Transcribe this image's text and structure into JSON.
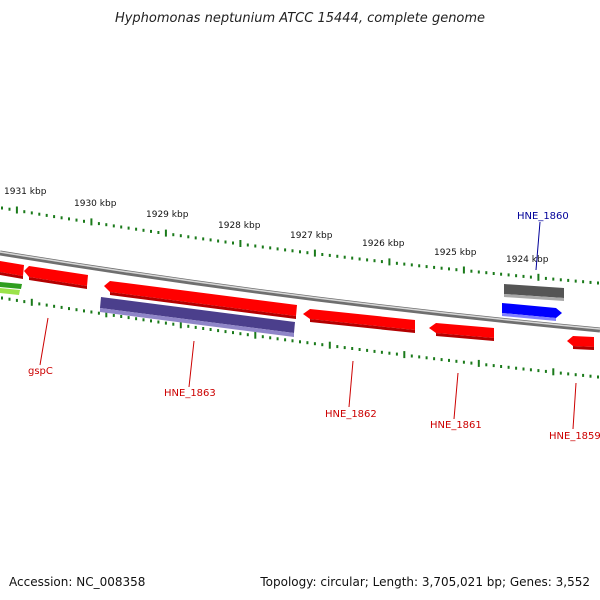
{
  "title": "Hyphomonas neptunium ATCC 15444, complete genome",
  "footer": {
    "accession": "Accession: NC_008358",
    "stats": "Topology: circular; Length: 3,705,021 bp; Genes: 3,552"
  },
  "colors": {
    "forward_gene": "#ff0000",
    "highlight_gene": "#0000ff",
    "gray_feature": "#555555",
    "purple_feature": "#4b3f8c",
    "green_feature": "#3fbf2a",
    "red_label": "#cc0000",
    "blue_label": "#000099",
    "tick": "#1a7a1a",
    "backbone": "#888888"
  },
  "ruler_labels": [
    "1931 kbp",
    "1930 kbp",
    "1929 kbp",
    "1928 kbp",
    "1927 kbp",
    "1926 kbp",
    "1925 kbp",
    "1924 kbp"
  ],
  "gene_labels": [
    {
      "label": "gspC",
      "strand": "minus"
    },
    {
      "label": "HNE_1863",
      "strand": "minus"
    },
    {
      "label": "HNE_1862",
      "strand": "minus"
    },
    {
      "label": "HNE_1861",
      "strand": "minus"
    },
    {
      "label": "HNE_1859",
      "strand": "minus"
    },
    {
      "label": "HNE_1860",
      "strand": "plus"
    }
  ]
}
